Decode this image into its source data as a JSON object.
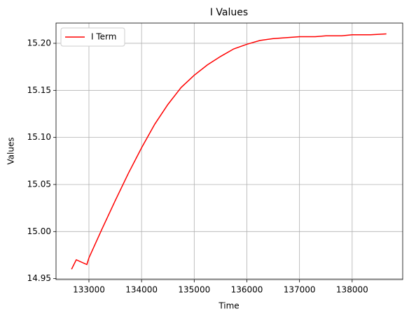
{
  "chart_data": {
    "type": "line",
    "title": "I Values",
    "x_label": "Time",
    "y_label": "Values",
    "x": [
      132670,
      132760,
      132960,
      133000,
      133250,
      133500,
      133750,
      134000,
      134250,
      134500,
      134750,
      135000,
      135250,
      135500,
      135750,
      136000,
      136250,
      136500,
      136750,
      137000,
      137300,
      137500,
      137800,
      138000,
      138350,
      138650
    ],
    "series": [
      {
        "name": "I Term",
        "color": "#ff0000",
        "values": [
          14.96,
          14.97,
          14.965,
          14.972,
          15.003,
          15.033,
          15.062,
          15.089,
          15.114,
          15.135,
          15.153,
          15.166,
          15.177,
          15.186,
          15.194,
          15.199,
          15.203,
          15.205,
          15.206,
          15.207,
          15.207,
          15.208,
          15.208,
          15.209,
          15.209,
          15.21
        ]
      }
    ],
    "xlim": [
      132375,
      138960
    ],
    "ylim": [
      14.949,
      15.2215
    ],
    "xticks": [
      133000,
      134000,
      135000,
      136000,
      137000,
      138000
    ],
    "yticks": [
      14.95,
      {
        "value": 15.0,
        "label": "15.00"
      },
      15.05,
      {
        "value": 15.1,
        "label": "15.10"
      },
      15.15,
      {
        "value": 15.2,
        "label": "15.20"
      }
    ],
    "grid": true,
    "legend": "upper left"
  }
}
